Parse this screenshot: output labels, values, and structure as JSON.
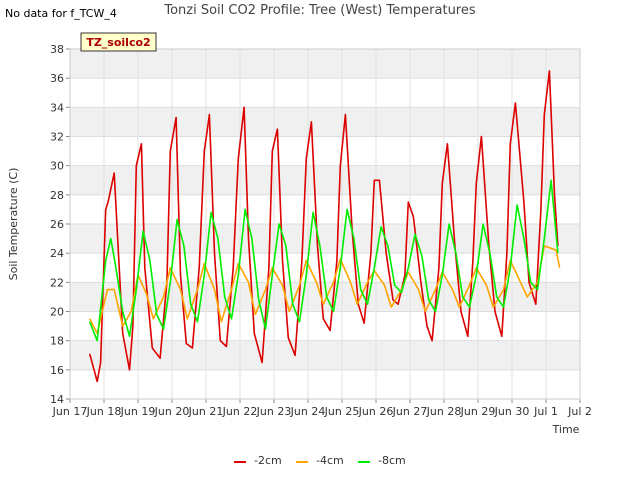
{
  "header": {
    "no_data_note": "No data for f_TCW_4"
  },
  "chart_data": {
    "type": "line",
    "title": "Tonzi Soil CO2 Profile: Tree (West) Temperatures",
    "xlabel": "Time",
    "ylabel": "Soil Temperature (C)",
    "ylim": [
      14,
      38
    ],
    "xlim": [
      0,
      15
    ],
    "yticks": [
      14,
      16,
      18,
      20,
      22,
      24,
      26,
      28,
      30,
      32,
      34,
      36,
      38
    ],
    "xticks": [
      {
        "x": 0,
        "label": "Jun 17"
      },
      {
        "x": 1,
        "label": "Jun 18"
      },
      {
        "x": 2,
        "label": "Jun 19"
      },
      {
        "x": 3,
        "label": "Jun 20"
      },
      {
        "x": 4,
        "label": "Jun 21"
      },
      {
        "x": 5,
        "label": "Jun 22"
      },
      {
        "x": 6,
        "label": "Jun 23"
      },
      {
        "x": 7,
        "label": "Jun 24"
      },
      {
        "x": 8,
        "label": "Jun 25"
      },
      {
        "x": 9,
        "label": "Jun 26"
      },
      {
        "x": 10,
        "label": "Jun 27"
      },
      {
        "x": 11,
        "label": "Jun 28"
      },
      {
        "x": 12,
        "label": "Jun 29"
      },
      {
        "x": 13,
        "label": "Jun 30"
      },
      {
        "x": 14,
        "label": "Jul 1"
      },
      {
        "x": 15,
        "label": "Jul 2"
      }
    ],
    "grid": true,
    "legend_position": "bottom",
    "station_label": "TZ_soilco2",
    "series": [
      {
        "name": "-2cm",
        "color": "#dd0000",
        "x": [
          0.58,
          0.8,
          0.9,
          1.05,
          1.12,
          1.3,
          1.55,
          1.75,
          1.85,
          1.95,
          2.1,
          2.2,
          2.42,
          2.65,
          2.85,
          2.95,
          3.12,
          3.25,
          3.42,
          3.6,
          3.8,
          3.95,
          4.1,
          4.25,
          4.42,
          4.6,
          4.8,
          4.95,
          5.12,
          5.25,
          5.42,
          5.65,
          5.85,
          5.95,
          6.1,
          6.25,
          6.42,
          6.62,
          6.82,
          6.95,
          7.1,
          7.28,
          7.45,
          7.65,
          7.85,
          7.95,
          8.1,
          8.3,
          8.48,
          8.65,
          8.85,
          8.95,
          9.1,
          9.3,
          9.5,
          9.65,
          9.85,
          9.95,
          10.1,
          10.32,
          10.5,
          10.65,
          10.85,
          10.95,
          11.1,
          11.32,
          11.5,
          11.7,
          11.85,
          11.95,
          12.1,
          12.32,
          12.5,
          12.7,
          12.85,
          12.95,
          13.1,
          13.35,
          13.5,
          13.7,
          13.85,
          13.95,
          14.1,
          14.25,
          14.35
        ],
        "y": [
          17.1,
          15.2,
          16.5,
          27.0,
          27.5,
          29.5,
          18.5,
          16.0,
          19.0,
          30.0,
          31.5,
          23.0,
          17.5,
          16.8,
          22.0,
          31.0,
          33.3,
          22.5,
          17.8,
          17.5,
          23.0,
          31.0,
          33.5,
          24.0,
          18.0,
          17.6,
          23.0,
          30.5,
          34.0,
          25.0,
          18.5,
          16.5,
          23.0,
          31.0,
          32.5,
          23.5,
          18.2,
          17.0,
          23.5,
          30.5,
          33.0,
          24.5,
          19.5,
          18.7,
          23.5,
          30.0,
          33.5,
          25.5,
          20.5,
          19.2,
          24.0,
          29.0,
          29.0,
          24.0,
          20.8,
          20.5,
          22.5,
          27.5,
          26.5,
          22.0,
          19.0,
          18.0,
          23.0,
          28.8,
          31.5,
          24.5,
          20.0,
          18.3,
          23.5,
          28.8,
          32.0,
          24.5,
          20.0,
          18.3,
          24.0,
          31.5,
          34.3,
          27.5,
          22.0,
          20.5,
          27.0,
          33.5,
          36.5,
          28.0,
          24.5
        ]
      },
      {
        "name": "-4cm",
        "color": "#ffa500",
        "x": [
          0.58,
          0.8,
          1.1,
          1.3,
          1.55,
          1.8,
          2.0,
          2.25,
          2.45,
          2.75,
          2.95,
          3.25,
          3.45,
          3.75,
          3.95,
          4.25,
          4.45,
          4.75,
          4.95,
          5.25,
          5.45,
          5.75,
          5.95,
          6.25,
          6.45,
          6.75,
          6.95,
          7.25,
          7.45,
          7.75,
          7.95,
          8.25,
          8.45,
          8.75,
          8.95,
          9.25,
          9.45,
          9.75,
          9.95,
          10.25,
          10.45,
          10.75,
          10.95,
          11.25,
          11.45,
          11.75,
          11.95,
          12.25,
          12.45,
          12.75,
          12.95,
          13.25,
          13.45,
          13.75,
          13.95,
          14.3,
          14.4
        ],
        "y": [
          19.5,
          18.5,
          21.5,
          21.5,
          19.0,
          20.0,
          22.5,
          21.2,
          19.5,
          21.0,
          23.0,
          21.5,
          19.5,
          21.5,
          23.3,
          21.5,
          19.3,
          21.5,
          23.3,
          22.0,
          19.8,
          21.5,
          23.0,
          21.8,
          20.0,
          21.8,
          23.5,
          22.0,
          20.5,
          22.0,
          23.6,
          22.0,
          20.5,
          22.0,
          22.8,
          21.8,
          20.3,
          21.5,
          22.7,
          21.5,
          20.0,
          21.5,
          22.7,
          21.5,
          20.3,
          21.8,
          23.0,
          21.8,
          20.3,
          21.5,
          23.5,
          22.0,
          21.0,
          22.0,
          24.5,
          24.2,
          23.0
        ]
      },
      {
        "name": "-8cm",
        "color": "#00ee00",
        "x": [
          0.58,
          0.8,
          1.05,
          1.2,
          1.35,
          1.55,
          1.75,
          1.95,
          2.15,
          2.35,
          2.55,
          2.75,
          2.95,
          3.15,
          3.35,
          3.55,
          3.75,
          3.95,
          4.15,
          4.35,
          4.55,
          4.75,
          4.95,
          5.15,
          5.35,
          5.55,
          5.75,
          5.95,
          6.15,
          6.35,
          6.55,
          6.75,
          6.95,
          7.15,
          7.35,
          7.55,
          7.75,
          7.95,
          8.15,
          8.35,
          8.55,
          8.75,
          8.95,
          9.15,
          9.35,
          9.55,
          9.75,
          9.95,
          10.15,
          10.35,
          10.55,
          10.75,
          10.95,
          11.15,
          11.35,
          11.55,
          11.75,
          11.95,
          12.15,
          12.35,
          12.55,
          12.75,
          12.95,
          13.15,
          13.35,
          13.55,
          13.75,
          13.95,
          14.15,
          14.35
        ],
        "y": [
          19.3,
          18.0,
          23.5,
          25.0,
          23.0,
          20.0,
          18.3,
          21.5,
          25.5,
          23.5,
          19.8,
          18.8,
          22.0,
          26.3,
          24.5,
          20.5,
          19.3,
          22.5,
          26.8,
          25.0,
          21.0,
          19.5,
          22.5,
          27.0,
          25.0,
          20.8,
          18.8,
          22.5,
          26.0,
          24.5,
          20.5,
          19.3,
          22.5,
          26.8,
          24.5,
          21.0,
          20.0,
          23.0,
          27.0,
          25.0,
          21.5,
          20.5,
          23.0,
          25.8,
          24.5,
          21.8,
          21.3,
          23.0,
          25.3,
          23.8,
          20.8,
          20.0,
          22.5,
          26.0,
          24.0,
          21.0,
          20.3,
          22.5,
          26.0,
          24.0,
          21.0,
          20.3,
          23.0,
          27.3,
          25.0,
          22.0,
          21.5,
          25.0,
          29.0,
          24.0
        ]
      }
    ]
  }
}
